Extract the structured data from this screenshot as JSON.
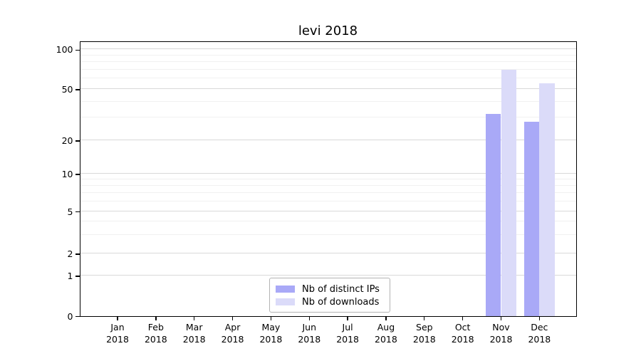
{
  "title": "levi 2018",
  "legend": {
    "items": [
      {
        "label": "Nb of distinct IPs",
        "color": "#a9a9f7"
      },
      {
        "label": "Nb of downloads",
        "color": "#dbdbf9"
      }
    ]
  },
  "chart_data": {
    "type": "bar",
    "title": "levi 2018",
    "categories": [
      "Jan",
      "Feb",
      "Mar",
      "Apr",
      "May",
      "Jun",
      "Jul",
      "Aug",
      "Sep",
      "Oct",
      "Nov",
      "Dec"
    ],
    "year_label": "2018",
    "series": [
      {
        "name": "Nb of distinct IPs",
        "color": "#a9a9f7",
        "values": [
          0,
          0,
          0,
          0,
          0,
          0,
          0,
          0,
          0,
          0,
          32,
          28
        ]
      },
      {
        "name": "Nb of downloads",
        "color": "#dbdbf9",
        "values": [
          0,
          0,
          0,
          0,
          0,
          0,
          0,
          0,
          0,
          0,
          70,
          55
        ]
      }
    ],
    "yscale": "symlog",
    "y_ticks": [
      0,
      1,
      2,
      5,
      10,
      20,
      50,
      100
    ],
    "y_minor_ticks": [
      3,
      4,
      6,
      7,
      8,
      9,
      30,
      40,
      60,
      70,
      80,
      90
    ],
    "ylim": [
      0,
      116
    ],
    "grid": "horizontal major and minor, light gray",
    "legend_position": "lower center"
  }
}
